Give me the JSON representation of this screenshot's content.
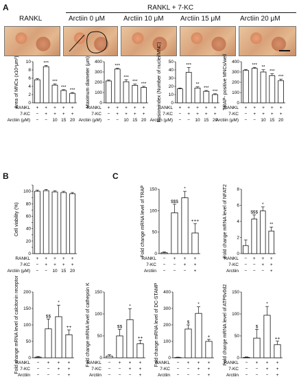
{
  "figure": {
    "panel_labels": {
      "a": "A",
      "b": "B",
      "c": "C"
    },
    "top_header": {
      "group": "RANKL + 7-KC",
      "rankl": "RANKL",
      "arctiin_cols": [
        "Arctiin 0 μM",
        "Arctiin 10 μM",
        "Arctiin 15 μM",
        "Arctiin  20 μM"
      ]
    },
    "row_labels": {
      "rankl": "RANKL",
      "kc": "7-KC",
      "arctiin_um": "Arctiin (μM)",
      "arctiin": "Arctiin"
    },
    "signs_4": {
      "rankl": [
        "+",
        "+",
        "+",
        "+",
        "+"
      ],
      "kc": [
        "−",
        "+",
        "+",
        "+",
        "+"
      ],
      "arctiin": [
        "−",
        "−",
        "10",
        "15",
        "20"
      ]
    },
    "signs_c": {
      "rankl": [
        "−",
        "+",
        "+",
        "+"
      ],
      "kc": [
        "−",
        "−",
        "+",
        "+"
      ],
      "arctiin": [
        "−",
        "−",
        "−",
        "+"
      ]
    }
  },
  "chart_data": [
    {
      "type": "bar",
      "panel": "A",
      "ylabel": "Area of MNCs (x10⁴μm²)",
      "ylim": [
        0,
        10
      ],
      "ticks": [
        0,
        2,
        4,
        6,
        8,
        10
      ],
      "values": [
        5.6,
        8.8,
        4.3,
        3.0,
        2.3
      ],
      "errors": [
        0.3,
        0.3,
        0.3,
        0.2,
        0.2
      ],
      "marks": [
        "",
        "***",
        "***",
        "***",
        "***"
      ]
    },
    {
      "type": "bar",
      "panel": "A",
      "ylabel": "Maximum diameter (μm)",
      "ylim": [
        0,
        400
      ],
      "ticks": [
        0,
        100,
        200,
        300,
        400
      ],
      "values": [
        213,
        328,
        205,
        170,
        150
      ],
      "errors": [
        8,
        8,
        20,
        12,
        10
      ],
      "marks": [
        "",
        "***",
        "***",
        "***",
        "***"
      ]
    },
    {
      "type": "bar",
      "panel": "A",
      "ylabel": "Fusion index (Number of nuclei/MNC)",
      "ylim": [
        0,
        50
      ],
      "ticks": [
        0,
        10,
        20,
        30,
        40,
        50
      ],
      "values": [
        17,
        37,
        18,
        14,
        10
      ],
      "errors": [
        1,
        6,
        1.5,
        1,
        1
      ],
      "marks": [
        "",
        "***",
        "**",
        "***",
        "***"
      ]
    },
    {
      "type": "bar",
      "panel": "A",
      "ylabel": "TRAP- positive MNCs/well",
      "ylim": [
        0,
        400
      ],
      "ticks": [
        0,
        100,
        200,
        300,
        400
      ],
      "values": [
        315,
        335,
        300,
        265,
        215
      ],
      "errors": [
        8,
        10,
        22,
        18,
        15
      ],
      "marks": [
        "",
        "***",
        "**",
        "***",
        "***"
      ]
    },
    {
      "type": "bar",
      "panel": "B",
      "ylabel": "Cell viability (%)",
      "ylim": [
        0,
        110
      ],
      "ticks": [
        0,
        10,
        20,
        30,
        40,
        50,
        60,
        70,
        80,
        90,
        100,
        110
      ],
      "values": [
        100,
        101,
        99,
        98,
        96
      ],
      "errors": [
        2,
        2,
        2,
        2,
        2
      ],
      "marks": [
        "",
        "",
        "",
        "",
        ""
      ]
    },
    {
      "type": "bar",
      "panel": "C",
      "ylabel": "Fold change mRNA level of TRAP",
      "ylim": [
        0,
        150
      ],
      "ticks": [
        0,
        50,
        100,
        150
      ],
      "values": [
        2,
        95,
        130,
        48
      ],
      "errors": [
        2,
        20,
        15,
        22
      ],
      "marks": [
        "",
        "$$$",
        "*",
        "+++"
      ]
    },
    {
      "type": "bar",
      "panel": "C",
      "ylabel": "Fold change mRNA level of NFAT2",
      "ylim": [
        0,
        8
      ],
      "ticks": [
        0,
        2,
        4,
        6,
        8
      ],
      "values": [
        1,
        4.3,
        5.3,
        2.8
      ],
      "errors": [
        0.7,
        0.5,
        0.5,
        0.5
      ],
      "marks": [
        "",
        "$$$",
        "*",
        "**"
      ]
    },
    {
      "type": "bar",
      "panel": "C",
      "ylabel": "Fold change mRNA level of calcitonin receptor",
      "ylim": [
        0,
        200
      ],
      "ticks": [
        0,
        50,
        100,
        150,
        200
      ],
      "values": [
        2,
        88,
        125,
        70
      ],
      "errors": [
        2,
        30,
        35,
        15
      ],
      "marks": [
        "",
        "$$",
        "*",
        "++"
      ]
    },
    {
      "type": "bar",
      "panel": "C",
      "ylabel": "Fold change mRNA level of cathepsin K",
      "ylim": [
        0,
        150
      ],
      "ticks": [
        0,
        50,
        100,
        150
      ],
      "values": [
        4,
        50,
        87,
        32
      ],
      "errors": [
        3,
        15,
        25,
        8
      ],
      "marks": [
        "",
        "$$",
        "*",
        "++"
      ]
    },
    {
      "type": "bar",
      "panel": "C",
      "ylabel": "Fold change mRNA level of DC-STAMP",
      "ylim": [
        0,
        400
      ],
      "ticks": [
        0,
        100,
        200,
        300,
        400
      ],
      "values": [
        2,
        175,
        270,
        100
      ],
      "errors": [
        2,
        25,
        40,
        12
      ],
      "marks": [
        "",
        "$",
        "*",
        "+"
      ]
    },
    {
      "type": "bar",
      "panel": "C",
      "ylabel": "Fold change mRNA level of ATP6v0d2",
      "ylim": [
        0,
        150
      ],
      "ticks": [
        0,
        50,
        100,
        150
      ],
      "values": [
        1,
        45,
        97,
        30
      ],
      "errors": [
        1,
        20,
        20,
        8
      ],
      "marks": [
        "",
        "$",
        "*",
        "++"
      ]
    }
  ]
}
